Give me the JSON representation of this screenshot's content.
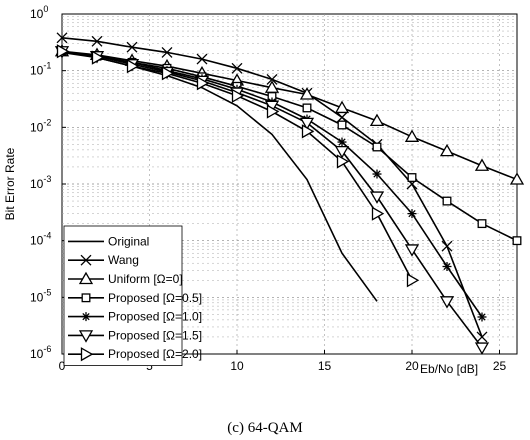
{
  "chart_data": {
    "type": "line",
    "caption": "(c) 64-QAM",
    "xlabel": "Eb/No [dB]",
    "ylabel": "Bit Error Rate",
    "xlim": [
      0,
      26
    ],
    "ylim_exp": [
      -6,
      0
    ],
    "yscale": "log",
    "grid": true,
    "legend_position": "bottom-left",
    "x_ticks": [
      "0",
      "5",
      "10",
      "15",
      "20",
      "25"
    ],
    "y_ticks": [
      {
        "base": "10",
        "exp": "0"
      },
      {
        "base": "10",
        "exp": "-1"
      },
      {
        "base": "10",
        "exp": "-2"
      },
      {
        "base": "10",
        "exp": "-3"
      },
      {
        "base": "10",
        "exp": "-4"
      },
      {
        "base": "10",
        "exp": "-5"
      },
      {
        "base": "10",
        "exp": "-6"
      }
    ],
    "series": [
      {
        "name": "Original",
        "marker": "none",
        "x": [
          0,
          2,
          4,
          6,
          8,
          10,
          12,
          14,
          16,
          18
        ],
        "y": [
          0.21,
          0.17,
          0.12,
          0.082,
          0.05,
          0.024,
          0.0075,
          0.0012,
          6e-05,
          8.5e-06
        ]
      },
      {
        "name": "Wang",
        "marker": "x",
        "x": [
          0,
          2,
          4,
          6,
          8,
          10,
          12,
          14,
          16,
          18,
          20,
          22,
          24
        ],
        "y": [
          0.38,
          0.33,
          0.26,
          0.21,
          0.16,
          0.11,
          0.07,
          0.04,
          0.015,
          0.005,
          0.001,
          8e-05,
          2e-06
        ]
      },
      {
        "name": "Uniform [Ω=0]",
        "marker": "triangle-up",
        "x": [
          0,
          2,
          4,
          6,
          8,
          10,
          12,
          14,
          16,
          18,
          20,
          22,
          24,
          26
        ],
        "y": [
          0.22,
          0.19,
          0.15,
          0.12,
          0.09,
          0.067,
          0.05,
          0.038,
          0.022,
          0.013,
          0.0068,
          0.0038,
          0.0021,
          0.0012
        ]
      },
      {
        "name": "Proposed [Ω=0.5]",
        "marker": "square",
        "x": [
          0,
          2,
          4,
          6,
          8,
          10,
          12,
          14,
          16,
          18,
          20,
          22,
          24,
          26
        ],
        "y": [
          0.22,
          0.18,
          0.14,
          0.11,
          0.078,
          0.053,
          0.035,
          0.022,
          0.011,
          0.0045,
          0.0013,
          0.0005,
          0.0002,
          0.0001
        ]
      },
      {
        "name": "Proposed [Ω=1.0]",
        "marker": "asterisk",
        "x": [
          0,
          2,
          4,
          6,
          8,
          10,
          12,
          14,
          16,
          18,
          20,
          22,
          24
        ],
        "y": [
          0.22,
          0.18,
          0.14,
          0.1,
          0.072,
          0.047,
          0.028,
          0.014,
          0.0055,
          0.0015,
          0.0003,
          3.5e-05,
          4.5e-06
        ]
      },
      {
        "name": "Proposed [Ω=1.5]",
        "marker": "triangle-down",
        "x": [
          0,
          2,
          4,
          6,
          8,
          10,
          12,
          14,
          16,
          18,
          20,
          22,
          24
        ],
        "y": [
          0.22,
          0.18,
          0.13,
          0.095,
          0.066,
          0.041,
          0.024,
          0.012,
          0.0038,
          0.0006,
          7e-05,
          8.5e-06,
          1.3e-06
        ]
      },
      {
        "name": "Proposed [Ω=2.0]",
        "marker": "triangle-right",
        "x": [
          0,
          2,
          4,
          6,
          8,
          10,
          12,
          14,
          16,
          18,
          20
        ],
        "y": [
          0.22,
          0.17,
          0.12,
          0.09,
          0.06,
          0.036,
          0.019,
          0.0085,
          0.0025,
          0.0003,
          2e-05
        ]
      }
    ]
  }
}
